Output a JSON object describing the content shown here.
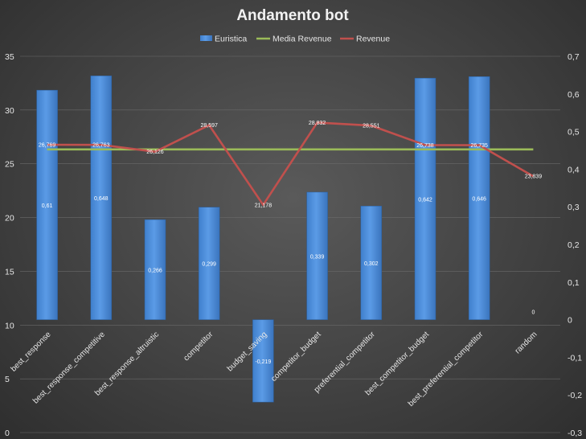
{
  "chart_data": {
    "type": "bar",
    "title": "Andamento bot",
    "categories": [
      "best_response",
      "best_response_competitive",
      "best_response_altruistic",
      "competitor",
      "budget_saving",
      "competitor_budget",
      "preferential_competitor",
      "best_competitor_budget",
      "best_preferential_competitor",
      "random"
    ],
    "series": [
      {
        "name": "Euristica",
        "type": "bar",
        "axis": "right",
        "values": [
          0.61,
          0.648,
          0.266,
          0.299,
          -0.219,
          0.339,
          0.302,
          0.642,
          0.646,
          0
        ],
        "labels": [
          "0,61",
          "0,648",
          "0,266",
          "0,299",
          "-0,219",
          "0,339",
          "0,302",
          "0,642",
          "0,646",
          "0"
        ],
        "color": "#4f8fd8"
      },
      {
        "name": "Media Revenue",
        "type": "line",
        "axis": "left",
        "values": [
          26.34,
          26.34,
          26.34,
          26.34,
          26.34,
          26.34,
          26.34,
          26.34,
          26.34,
          26.34
        ],
        "color": "#9bbb59"
      },
      {
        "name": "Revenue",
        "type": "line",
        "axis": "left",
        "values": [
          26.769,
          26.763,
          26.126,
          28.597,
          21.178,
          28.832,
          28.551,
          26.738,
          26.735,
          23.839
        ],
        "labels": [
          "26,769",
          "26,763",
          "26,126",
          "28,597",
          "21,178",
          "28,832",
          "28,551",
          "26,738",
          "26,735",
          "23,839"
        ],
        "color": "#c0504d"
      }
    ],
    "left_axis": {
      "ylim": [
        0,
        35
      ],
      "ticks": [
        0,
        5,
        10,
        15,
        20,
        25,
        30,
        35
      ],
      "tick_labels": [
        "0",
        "5",
        "10",
        "15",
        "20",
        "25",
        "30",
        "35"
      ]
    },
    "right_axis": {
      "ylim": [
        -0.3,
        0.7
      ],
      "ticks": [
        -0.3,
        -0.2,
        -0.1,
        0,
        0.1,
        0.2,
        0.3,
        0.4,
        0.5,
        0.6,
        0.7
      ],
      "tick_labels": [
        "-0,3",
        "-0,2",
        "-0,1",
        "0",
        "0,1",
        "0,2",
        "0,3",
        "0,4",
        "0,5",
        "0,6",
        "0,7"
      ]
    },
    "grid": true,
    "legend_position": "top"
  }
}
